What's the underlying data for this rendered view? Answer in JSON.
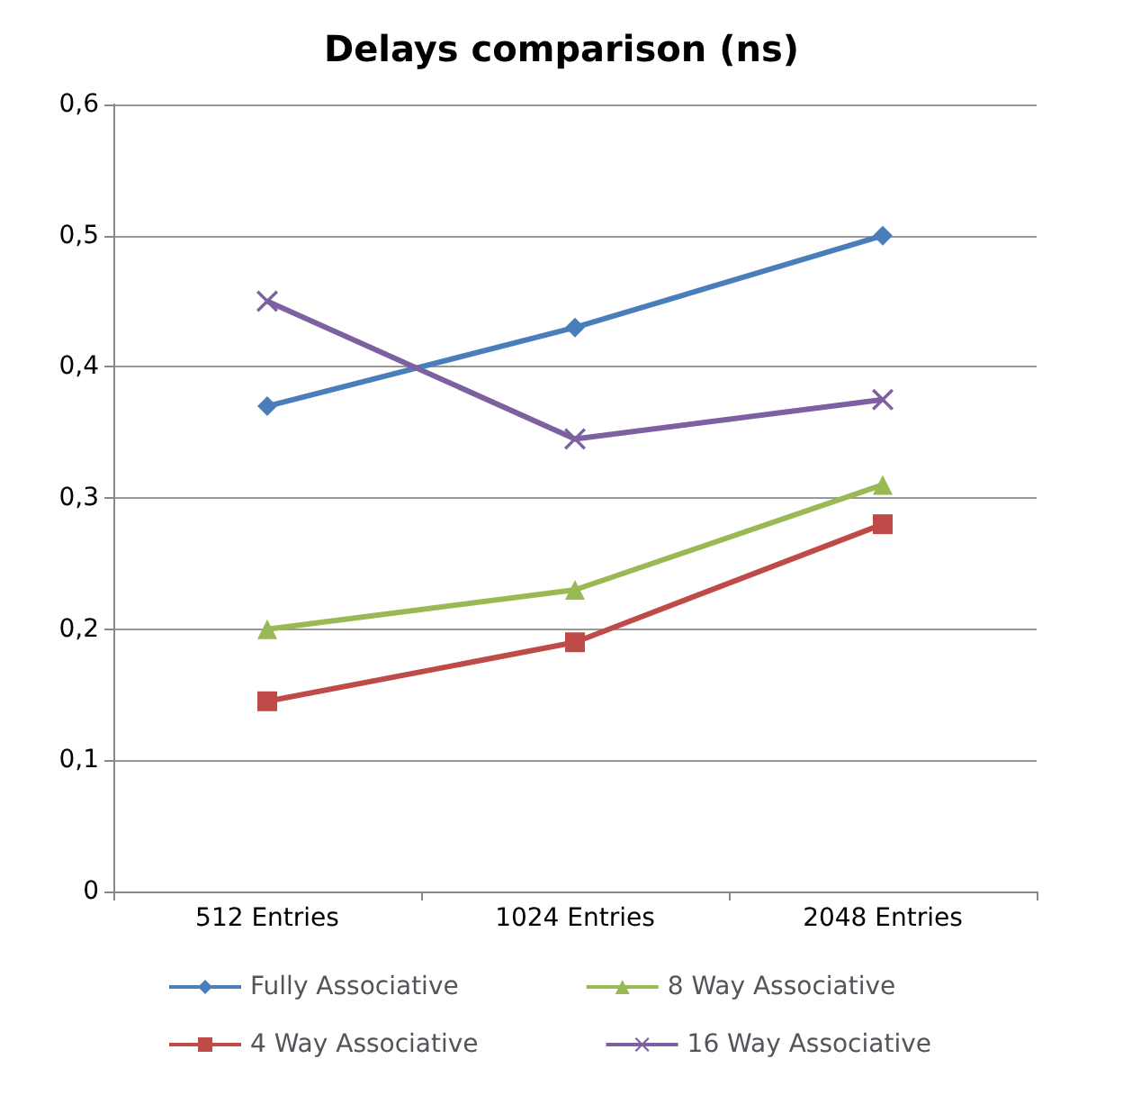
{
  "chart_data": {
    "type": "line",
    "title": "Delays comparison (ns)",
    "categories": [
      "512 Entries",
      "1024 Entries",
      "2048 Entries"
    ],
    "series": [
      {
        "name": "Fully Associative",
        "color": "#4a7ebb",
        "marker": "diamond",
        "values": [
          0.37,
          0.43,
          0.5
        ]
      },
      {
        "name": "8 Way Associative",
        "color": "#98b954",
        "marker": "triangle",
        "values": [
          0.2,
          0.23,
          0.31
        ]
      },
      {
        "name": "4 Way Associative",
        "color": "#be4b48",
        "marker": "square",
        "values": [
          0.145,
          0.19,
          0.28
        ]
      },
      {
        "name": "16 Way Associative",
        "color": "#7d60a0",
        "marker": "cross",
        "values": [
          0.45,
          0.345,
          0.375
        ]
      }
    ],
    "ylim": [
      0,
      0.6
    ],
    "yticks": [
      0,
      {
        "value": 0.1,
        "label": "0,1"
      },
      {
        "value": 0.2,
        "label": "0,2"
      },
      {
        "value": 0.3,
        "label": "0,3"
      },
      {
        "value": 0.4,
        "label": "0,4"
      },
      {
        "value": 0.5,
        "label": "0,5"
      },
      {
        "value": 0.6,
        "label": "0,6"
      }
    ],
    "grid": "y",
    "legend": "bottom"
  }
}
